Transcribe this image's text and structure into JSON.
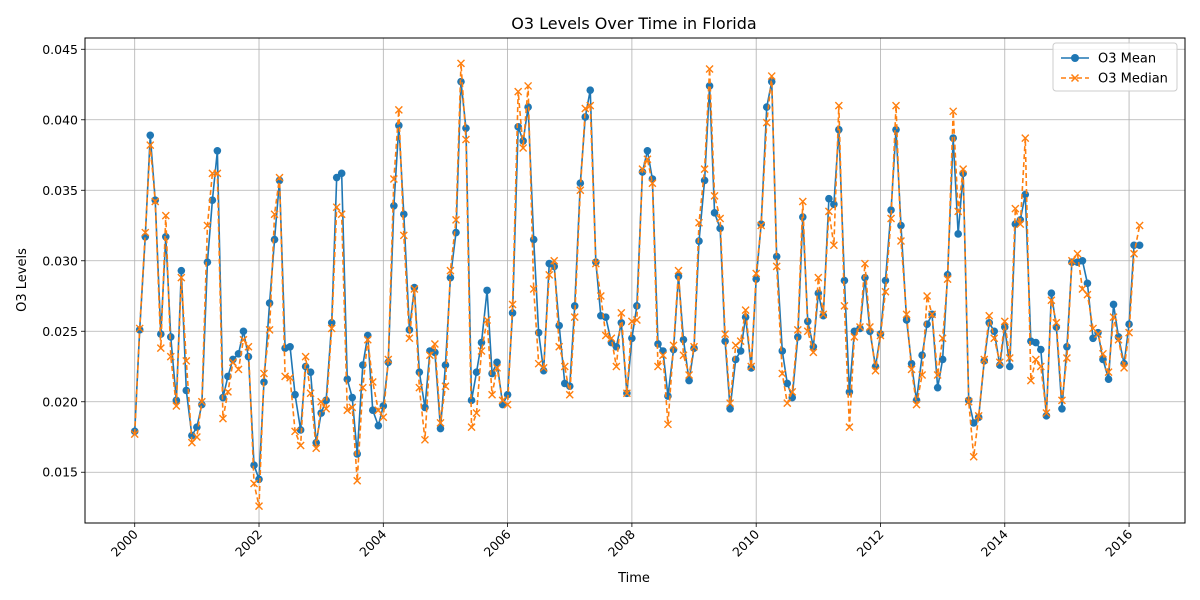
{
  "chart_data": {
    "type": "line",
    "title": "O3 Levels Over Time in Florida",
    "xlabel": "Time",
    "ylabel": "O3 Levels",
    "xlim": [
      1999.2,
      2016.9
    ],
    "ylim": [
      0.0114,
      0.0458
    ],
    "x_ticks": [
      2000,
      2002,
      2004,
      2006,
      2008,
      2010,
      2012,
      2014,
      2016
    ],
    "x_tick_labels": [
      "2000",
      "2002",
      "2004",
      "2006",
      "2008",
      "2010",
      "2012",
      "2014",
      "2016"
    ],
    "y_ticks": [
      0.015,
      0.02,
      0.025,
      0.03,
      0.035,
      0.04,
      0.045
    ],
    "y_tick_labels": [
      "0.015",
      "0.020",
      "0.025",
      "0.030",
      "0.035",
      "0.040",
      "0.045"
    ],
    "grid": true,
    "legend_position": "top-right",
    "x": [
      2000.0,
      2000.08,
      2000.17,
      2000.25,
      2000.33,
      2000.42,
      2000.5,
      2000.58,
      2000.67,
      2000.75,
      2000.83,
      2000.92,
      2001.0,
      2001.08,
      2001.17,
      2001.25,
      2001.33,
      2001.42,
      2001.5,
      2001.58,
      2001.67,
      2001.75,
      2001.83,
      2001.92,
      2002.0,
      2002.08,
      2002.17,
      2002.25,
      2002.33,
      2002.42,
      2002.5,
      2002.58,
      2002.67,
      2002.75,
      2002.83,
      2002.92,
      2003.0,
      2003.08,
      2003.17,
      2003.25,
      2003.33,
      2003.42,
      2003.5,
      2003.58,
      2003.67,
      2003.75,
      2003.83,
      2003.92,
      2004.0,
      2004.08,
      2004.17,
      2004.25,
      2004.33,
      2004.42,
      2004.5,
      2004.58,
      2004.67,
      2004.75,
      2004.83,
      2004.92,
      2005.0,
      2005.08,
      2005.17,
      2005.25,
      2005.33,
      2005.42,
      2005.5,
      2005.58,
      2005.67,
      2005.75,
      2005.83,
      2005.92,
      2006.0,
      2006.08,
      2006.17,
      2006.25,
      2006.33,
      2006.42,
      2006.5,
      2006.58,
      2006.67,
      2006.75,
      2006.83,
      2006.92,
      2007.0,
      2007.08,
      2007.17,
      2007.25,
      2007.33,
      2007.42,
      2007.5,
      2007.58,
      2007.67,
      2007.75,
      2007.83,
      2007.92,
      2008.0,
      2008.08,
      2008.17,
      2008.25,
      2008.33,
      2008.42,
      2008.5,
      2008.58,
      2008.67,
      2008.75,
      2008.83,
      2008.92,
      2009.0,
      2009.08,
      2009.17,
      2009.25,
      2009.33,
      2009.42,
      2009.5,
      2009.58,
      2009.67,
      2009.75,
      2009.83,
      2009.92,
      2010.0,
      2010.08,
      2010.17,
      2010.25,
      2010.33,
      2010.42,
      2010.5,
      2010.58,
      2010.67,
      2010.75,
      2010.83,
      2010.92,
      2011.0,
      2011.08,
      2011.17,
      2011.25,
      2011.33,
      2011.42,
      2011.5,
      2011.58,
      2011.67,
      2011.75,
      2011.83,
      2011.92,
      2012.0,
      2012.08,
      2012.17,
      2012.25,
      2012.33,
      2012.42,
      2012.5,
      2012.58,
      2012.67,
      2012.75,
      2012.83,
      2012.92,
      2013.0,
      2013.08,
      2013.17,
      2013.25,
      2013.33,
      2013.42,
      2013.5,
      2013.58,
      2013.67,
      2013.75,
      2013.83,
      2013.92,
      2014.0,
      2014.08,
      2014.17,
      2014.25,
      2014.33,
      2014.42,
      2014.5,
      2014.58,
      2014.67,
      2014.75,
      2014.83,
      2014.92,
      2015.0,
      2015.08,
      2015.17,
      2015.25,
      2015.33,
      2015.42,
      2015.5,
      2015.58,
      2015.67,
      2015.75,
      2015.83,
      2015.92,
      2016.0,
      2016.08,
      2016.17
    ],
    "series": [
      {
        "name": "O3 Mean",
        "color": "#1f77b4",
        "marker": "circle",
        "line_style": "solid",
        "values": [
          0.0179,
          0.0251,
          0.0317,
          0.0389,
          0.0343,
          0.0248,
          0.0317,
          0.0246,
          0.0201,
          0.0293,
          0.0208,
          0.0176,
          0.0182,
          0.0198,
          0.0299,
          0.0343,
          0.0378,
          0.0203,
          0.0218,
          0.023,
          0.0234,
          0.025,
          0.0232,
          0.0155,
          0.0145,
          0.0214,
          0.027,
          0.0315,
          0.0357,
          0.0238,
          0.0239,
          0.0205,
          0.018,
          0.0225,
          0.0221,
          0.0171,
          0.0192,
          0.0201,
          0.0256,
          0.0359,
          0.0362,
          0.0216,
          0.0203,
          0.0163,
          0.0226,
          0.0247,
          0.0194,
          0.0183,
          0.0197,
          0.0228,
          0.0339,
          0.0396,
          0.0333,
          0.0251,
          0.0281,
          0.0221,
          0.0196,
          0.0236,
          0.0235,
          0.0181,
          0.0226,
          0.0288,
          0.032,
          0.0427,
          0.0394,
          0.0201,
          0.0221,
          0.0242,
          0.0279,
          0.022,
          0.0228,
          0.0198,
          0.0205,
          0.0263,
          0.0395,
          0.0385,
          0.0409,
          0.0315,
          0.0249,
          0.0222,
          0.0298,
          0.0296,
          0.0254,
          0.0213,
          0.0211,
          0.0268,
          0.0355,
          0.0402,
          0.0421,
          0.0299,
          0.0261,
          0.026,
          0.0242,
          0.0239,
          0.0256,
          0.0206,
          0.0245,
          0.0268,
          0.0363,
          0.0378,
          0.0358,
          0.0241,
          0.0236,
          0.0204,
          0.0237,
          0.0289,
          0.0244,
          0.0215,
          0.0238,
          0.0314,
          0.0357,
          0.0424,
          0.0334,
          0.0323,
          0.0243,
          0.0195,
          0.023,
          0.0236,
          0.026,
          0.0224,
          0.0287,
          0.0326,
          0.0409,
          0.0427,
          0.0303,
          0.0236,
          0.0213,
          0.0203,
          0.0246,
          0.0331,
          0.0257,
          0.0239,
          0.0277,
          0.0261,
          0.0344,
          0.034,
          0.0393,
          0.0286,
          0.0207,
          0.025,
          0.0252,
          0.0288,
          0.025,
          0.0225,
          0.0248,
          0.0286,
          0.0336,
          0.0393,
          0.0325,
          0.0258,
          0.0227,
          0.0201,
          0.0233,
          0.0255,
          0.0262,
          0.021,
          0.023,
          0.029,
          0.0387,
          0.0319,
          0.0362,
          0.0201,
          0.0185,
          0.0189,
          0.0229,
          0.0256,
          0.025,
          0.0226,
          0.0253,
          0.0225,
          0.0326,
          0.0329,
          0.0347,
          0.0243,
          0.0242,
          0.0237,
          0.019,
          0.0277,
          0.0253,
          0.0195,
          0.0239,
          0.0299,
          0.0299,
          0.03,
          0.0284,
          0.0245,
          0.0249,
          0.023,
          0.0216,
          0.0269,
          0.0246,
          0.0227,
          0.0255,
          0.0311,
          0.0311
        ]
      },
      {
        "name": "O3 Median",
        "color": "#ff7f0e",
        "marker": "x",
        "line_style": "dashed",
        "values": [
          0.0177,
          0.0252,
          0.032,
          0.0382,
          0.0342,
          0.0238,
          0.0332,
          0.0232,
          0.0197,
          0.0288,
          0.0229,
          0.0171,
          0.0175,
          0.02,
          0.0325,
          0.0362,
          0.0362,
          0.0188,
          0.0207,
          0.0228,
          0.0223,
          0.0244,
          0.0239,
          0.0142,
          0.0126,
          0.022,
          0.0251,
          0.0333,
          0.0359,
          0.0218,
          0.0217,
          0.0179,
          0.0169,
          0.0232,
          0.0206,
          0.0167,
          0.02,
          0.0195,
          0.0252,
          0.0338,
          0.0333,
          0.0194,
          0.0196,
          0.0144,
          0.021,
          0.0244,
          0.0214,
          0.0194,
          0.0189,
          0.023,
          0.0358,
          0.0407,
          0.0318,
          0.0245,
          0.028,
          0.021,
          0.0173,
          0.0233,
          0.0241,
          0.0185,
          0.0211,
          0.0293,
          0.0329,
          0.044,
          0.0386,
          0.0182,
          0.0192,
          0.0236,
          0.0258,
          0.0205,
          0.0224,
          0.0201,
          0.0198,
          0.0269,
          0.042,
          0.038,
          0.0424,
          0.028,
          0.0227,
          0.0224,
          0.029,
          0.03,
          0.0239,
          0.0225,
          0.0205,
          0.026,
          0.035,
          0.0408,
          0.041,
          0.0298,
          0.0275,
          0.0247,
          0.0245,
          0.0225,
          0.0263,
          0.0206,
          0.0257,
          0.0258,
          0.0365,
          0.0372,
          0.0355,
          0.0225,
          0.0233,
          0.0184,
          0.024,
          0.0293,
          0.0233,
          0.0219,
          0.0239,
          0.0327,
          0.0365,
          0.0436,
          0.0346,
          0.033,
          0.0248,
          0.0199,
          0.024,
          0.0243,
          0.0265,
          0.0225,
          0.0291,
          0.0325,
          0.0398,
          0.0431,
          0.0296,
          0.022,
          0.0199,
          0.0207,
          0.0251,
          0.0342,
          0.025,
          0.0235,
          0.0288,
          0.0262,
          0.0335,
          0.0311,
          0.041,
          0.0268,
          0.0182,
          0.0246,
          0.0253,
          0.0298,
          0.0253,
          0.0222,
          0.0247,
          0.0278,
          0.033,
          0.041,
          0.0314,
          0.0262,
          0.0223,
          0.0198,
          0.0219,
          0.0275,
          0.0262,
          0.0219,
          0.0245,
          0.0287,
          0.0406,
          0.0335,
          0.0365,
          0.02,
          0.0161,
          0.019,
          0.023,
          0.0261,
          0.0245,
          0.0228,
          0.0257,
          0.0231,
          0.0337,
          0.0326,
          0.0387,
          0.0215,
          0.023,
          0.0225,
          0.0192,
          0.0272,
          0.0256,
          0.0201,
          0.0231,
          0.03,
          0.0305,
          0.028,
          0.0276,
          0.0252,
          0.0248,
          0.0234,
          0.0221,
          0.026,
          0.0244,
          0.0224,
          0.0249,
          0.0305,
          0.0325
        ]
      }
    ]
  }
}
